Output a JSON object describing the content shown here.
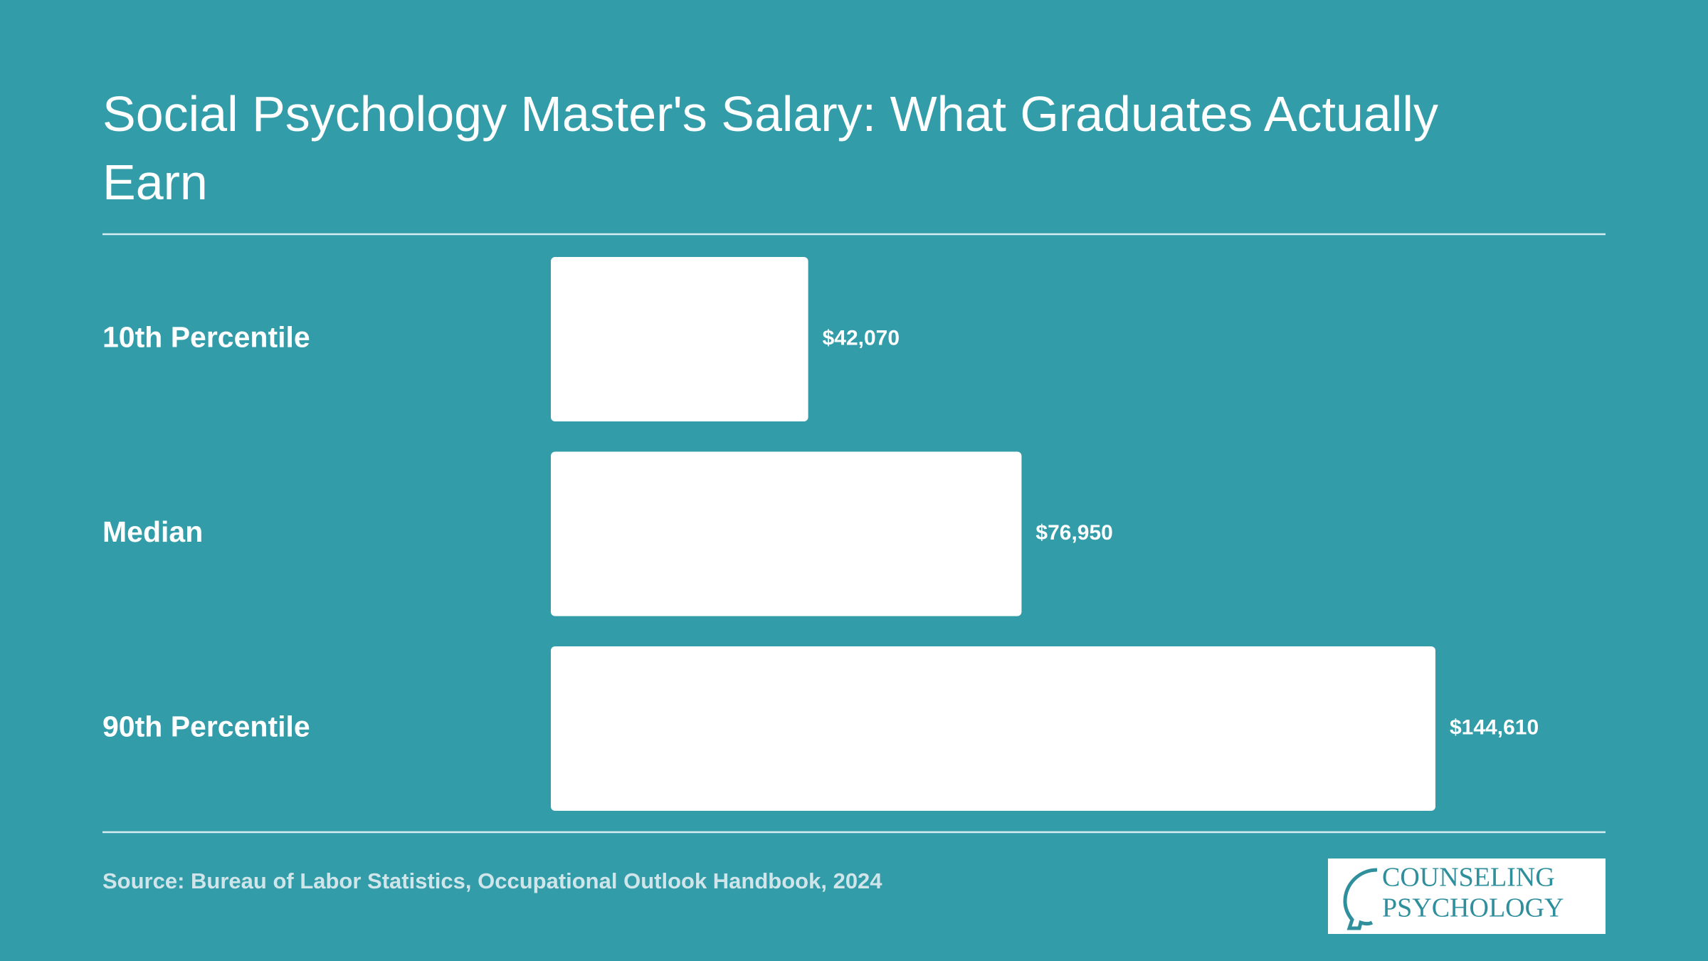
{
  "chart_data": {
    "type": "bar",
    "orientation": "horizontal",
    "title": "Social Psychology Master's Salary: What Graduates Actually Earn",
    "categories": [
      "10th Percentile",
      "Median",
      "90th Percentile"
    ],
    "values": [
      42070,
      76950,
      144610
    ],
    "value_labels": [
      "$42,070",
      "$76,950",
      "$144,610"
    ],
    "color": "#ffffff",
    "source": "Source: Bureau of Labor Statistics, Occupational Outlook Handbook, 2024"
  },
  "logo": {
    "line1": "COUNSELING",
    "line2": "PSYCHOLOGY"
  }
}
